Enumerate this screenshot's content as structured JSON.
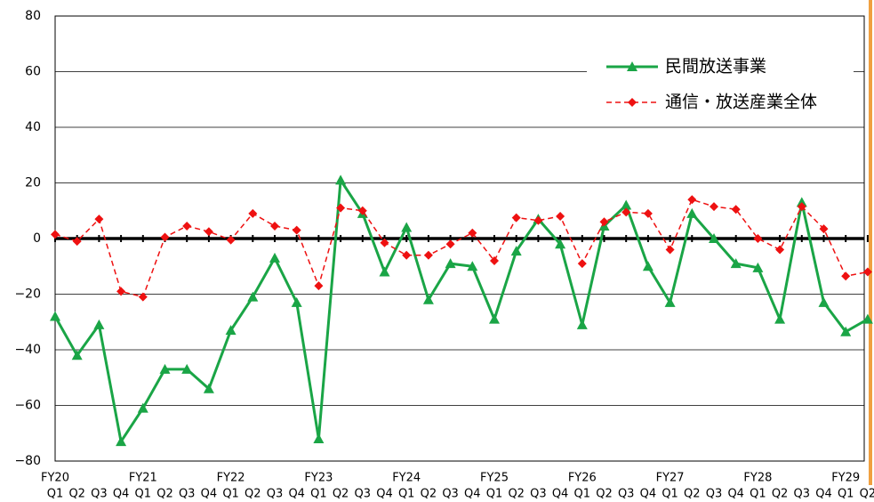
{
  "chart_data": {
    "type": "line",
    "categories": [
      "Q1",
      "Q2",
      "Q3",
      "Q4",
      "Q1",
      "Q2",
      "Q3",
      "Q4",
      "Q1",
      "Q2",
      "Q3",
      "Q4",
      "Q1",
      "Q2",
      "Q3",
      "Q4",
      "Q1",
      "Q2",
      "Q3",
      "Q4",
      "Q1",
      "Q2",
      "Q3",
      "Q4",
      "Q1",
      "Q2",
      "Q3",
      "Q4",
      "Q1",
      "Q2",
      "Q3",
      "Q4",
      "Q1",
      "Q2",
      "Q3",
      "Q4",
      "Q1",
      "Q2"
    ],
    "year_labels": [
      "FY20",
      null,
      null,
      null,
      "FY21",
      null,
      null,
      null,
      "FY22",
      null,
      null,
      null,
      "FY23",
      null,
      null,
      null,
      "FY24",
      null,
      null,
      null,
      "FY25",
      null,
      null,
      null,
      "FY26",
      null,
      null,
      null,
      "FY27",
      null,
      null,
      null,
      "FY28",
      null,
      null,
      null,
      "FY29",
      null
    ],
    "series": [
      {
        "name": "民間放送事業",
        "color": "#1aa546",
        "marker": "triangle",
        "dashed": false,
        "values": [
          -28,
          -42,
          -31,
          -73,
          -61,
          -47,
          -47,
          -54,
          -33,
          -21,
          -7,
          -23,
          -72,
          21,
          9,
          -12,
          4,
          -22,
          -9,
          -10,
          -29,
          -4.5,
          7,
          -2,
          -31,
          4.5,
          12,
          -10,
          -23,
          9,
          0,
          -9,
          -10.5,
          -29,
          13,
          -23,
          -33.5,
          -29
        ]
      },
      {
        "name": "通信・放送産業全体",
        "color": "#ee1111",
        "marker": "diamond",
        "dashed": true,
        "values": [
          1.5,
          -1,
          7,
          -19,
          -21,
          0.5,
          4.5,
          2.5,
          -0.5,
          9,
          4.5,
          3,
          -17,
          11,
          10,
          -1.5,
          -6,
          -6,
          -2,
          2,
          -8,
          7.5,
          6.5,
          8,
          -9,
          6,
          9.5,
          9,
          -4,
          14,
          11.5,
          10.5,
          0,
          -4,
          11.5,
          3.5,
          -13.5,
          -12
        ]
      }
    ],
    "ylim": [
      -80,
      80
    ],
    "yticks": [
      {
        "value": -80,
        "label": "−80"
      },
      {
        "value": -60,
        "label": "−60"
      },
      {
        "value": -40,
        "label": "−40"
      },
      {
        "value": -20,
        "label": "−20"
      },
      0,
      20,
      40,
      60,
      80
    ],
    "grid": true,
    "legend": "upper right"
  }
}
